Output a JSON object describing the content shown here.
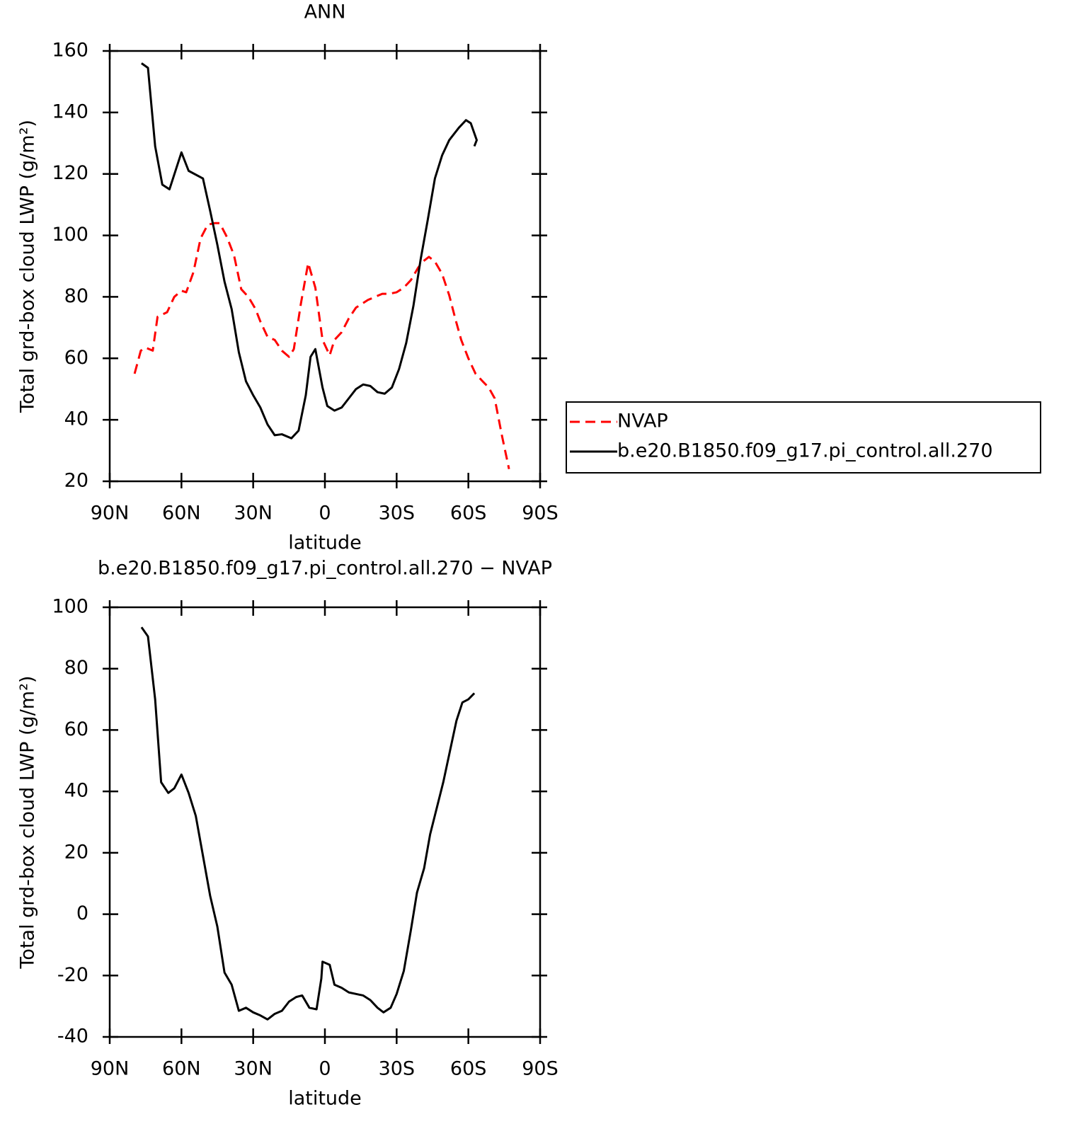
{
  "chart_data": [
    {
      "type": "line",
      "title": "ANN",
      "xlabel": "latitude",
      "ylabel": "Total grd-box cloud LWP (g/m²)",
      "xlim": [
        90,
        -90
      ],
      "xticks": [
        {
          "value": 90,
          "label": "90N"
        },
        {
          "value": 60,
          "label": "60N"
        },
        {
          "value": 30,
          "label": "30N"
        },
        0,
        {
          "value": -30,
          "label": "30S"
        },
        {
          "value": -60,
          "label": "60S"
        },
        {
          "value": -90,
          "label": "90S"
        }
      ],
      "ylim": [
        20,
        160
      ],
      "yticks": [
        20,
        40,
        60,
        80,
        100,
        120,
        140,
        160
      ],
      "legend": "right",
      "series": [
        {
          "name": "NVAP",
          "color": "#ff0000",
          "dashed": true,
          "x": [
            79.6,
            77,
            75,
            72,
            70,
            66,
            63,
            60,
            58,
            55,
            52,
            49,
            46,
            44,
            41,
            38,
            35,
            32,
            29,
            27,
            24,
            21,
            18,
            15,
            13,
            10,
            7,
            4,
            1,
            -2,
            -4,
            -7,
            -10,
            -13,
            -16,
            -18,
            -21,
            -24,
            -27,
            -30,
            -33,
            -36,
            -39,
            -41,
            -43.5,
            -46,
            -49,
            -52,
            -54.5,
            -57,
            -60,
            -63,
            -66,
            -68.5,
            -71,
            -74,
            -77
          ],
          "values": [
            55,
            62.5,
            63.5,
            62.5,
            73.5,
            75,
            80,
            82,
            81.5,
            88,
            99,
            103.5,
            104,
            104,
            99.5,
            93.5,
            82.5,
            80,
            76,
            72,
            67,
            66,
            62.5,
            60.5,
            63,
            78,
            91,
            83,
            66,
            61,
            66,
            68.5,
            73,
            76.5,
            78,
            79,
            80,
            81,
            81,
            81.5,
            83,
            85.5,
            89.5,
            91.5,
            93,
            91.5,
            87.5,
            80.5,
            73,
            66,
            60,
            55,
            52.5,
            50.5,
            47,
            35,
            24
          ]
        },
        {
          "name": "b.e20.B1850.f09_g17.pi_control.all.270",
          "color": "#000000",
          "dashed": false,
          "x": [
            76.7,
            74,
            71,
            68,
            65,
            60,
            57,
            51,
            48,
            45,
            42,
            39,
            36,
            33,
            30,
            27,
            24,
            21,
            18,
            14,
            11,
            8,
            6,
            4,
            1,
            -1,
            -4,
            -7,
            -10,
            -13,
            -16,
            -19,
            -22,
            -25,
            -28,
            -31,
            -34,
            -37,
            -40,
            -43,
            -46,
            -49,
            -52,
            -56,
            -59,
            -61,
            -63.5,
            -62.5
          ],
          "values": [
            156,
            154.5,
            129,
            116.5,
            115,
            127,
            121,
            118.5,
            108,
            97,
            85,
            76,
            62,
            52.5,
            48,
            44,
            38.5,
            35,
            35.3,
            34,
            36.5,
            48,
            60.5,
            63,
            50.5,
            44.5,
            43,
            44,
            47,
            50,
            51.5,
            51,
            49,
            48.5,
            50.5,
            56.5,
            65,
            77,
            92,
            105,
            118.5,
            126,
            131,
            135,
            137.5,
            136.5,
            131,
            129
          ]
        }
      ]
    },
    {
      "type": "line",
      "title": "b.e20.B1850.f09_g17.pi_control.all.270 − NVAP",
      "xlabel": "latitude",
      "ylabel": "Total grd-box cloud LWP (g/m²)",
      "xlim": [
        90,
        -90
      ],
      "xticks": [
        {
          "value": 90,
          "label": "90N"
        },
        {
          "value": 60,
          "label": "60N"
        },
        {
          "value": 30,
          "label": "30N"
        },
        0,
        {
          "value": -30,
          "label": "30S"
        },
        {
          "value": -60,
          "label": "60S"
        },
        {
          "value": -90,
          "label": "90S"
        }
      ],
      "ylim": [
        -40,
        100
      ],
      "yticks": [
        -40,
        -20,
        0,
        20,
        40,
        60,
        80,
        100
      ],
      "series": [
        {
          "color": "#000000",
          "dashed": false,
          "x": [
            76.7,
            74,
            71,
            68.5,
            65.5,
            63,
            60,
            57,
            54,
            51,
            48,
            45,
            42,
            39,
            36,
            33,
            30,
            27,
            24,
            21,
            18,
            15,
            12,
            9.5,
            6.5,
            3.5,
            1.5,
            1,
            -2,
            -4,
            -7,
            -10,
            -13,
            -16,
            -19,
            -22,
            -24.5,
            -27.5,
            -30,
            -33,
            -36,
            -38.5,
            -41.5,
            -44,
            -49.5,
            -55,
            -57.5,
            -60,
            -62.5
          ],
          "values": [
            93.5,
            90.5,
            70,
            43,
            39.5,
            41,
            45.5,
            39.5,
            32,
            19,
            6,
            -4,
            -19,
            -23,
            -31.5,
            -30.5,
            -32,
            -33,
            -34.3,
            -32.5,
            -31.5,
            -28.5,
            -27,
            -26.5,
            -30.5,
            -31,
            -21,
            -15.5,
            -16.5,
            -23,
            -24,
            -25.5,
            -26,
            -26.5,
            -28,
            -30.5,
            -32,
            -30.5,
            -26,
            -18.5,
            -5,
            7,
            15,
            26,
            43,
            63,
            69,
            70,
            72
          ]
        }
      ]
    }
  ]
}
